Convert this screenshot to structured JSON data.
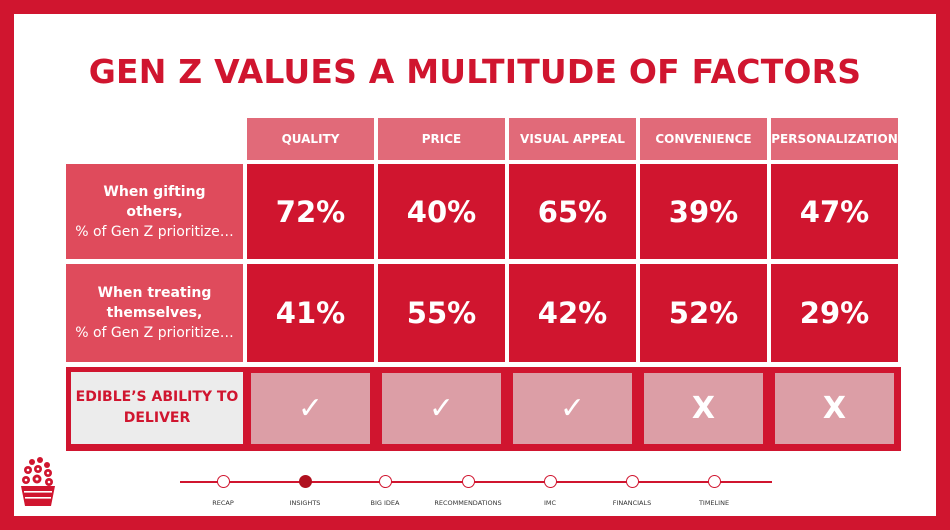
{
  "title": "GEN Z VALUES A MULTITUDE OF FACTORS",
  "columns": [
    "QUALITY",
    "PRICE",
    "VISUAL APPEAL",
    "CONVENIENCE",
    "PERSONALIZATION"
  ],
  "rows": [
    {
      "label_bold": "When gifting others,",
      "label_regular": "% of Gen Z prioritize…",
      "values": [
        "72%",
        "40%",
        "65%",
        "39%",
        "47%"
      ]
    },
    {
      "label_bold": "When treating themselves,",
      "label_regular": "% of Gen Z prioritize…",
      "values": [
        "41%",
        "55%",
        "42%",
        "52%",
        "29%"
      ]
    }
  ],
  "deliver": {
    "label": "EDIBLE’S ABILITY TO DELIVER",
    "marks": [
      "✓",
      "✓",
      "✓",
      "X",
      "X"
    ]
  },
  "timeline": {
    "steps": [
      "RECAP",
      "INSIGHTS",
      "BIG IDEA",
      "RECOMMENDATIONS",
      "IMC",
      "FINANCIALS",
      "TIMELINE"
    ],
    "active": "INSIGHTS"
  },
  "colors": {
    "brand_red": "#d0152f",
    "header_pink": "#e16a79",
    "row_label_pink": "#df4b5c",
    "deliver_pink": "#dc9ea6",
    "deliver_label_bg": "#ececec"
  },
  "icons": {
    "logo": "flower-basket-logo-icon"
  }
}
